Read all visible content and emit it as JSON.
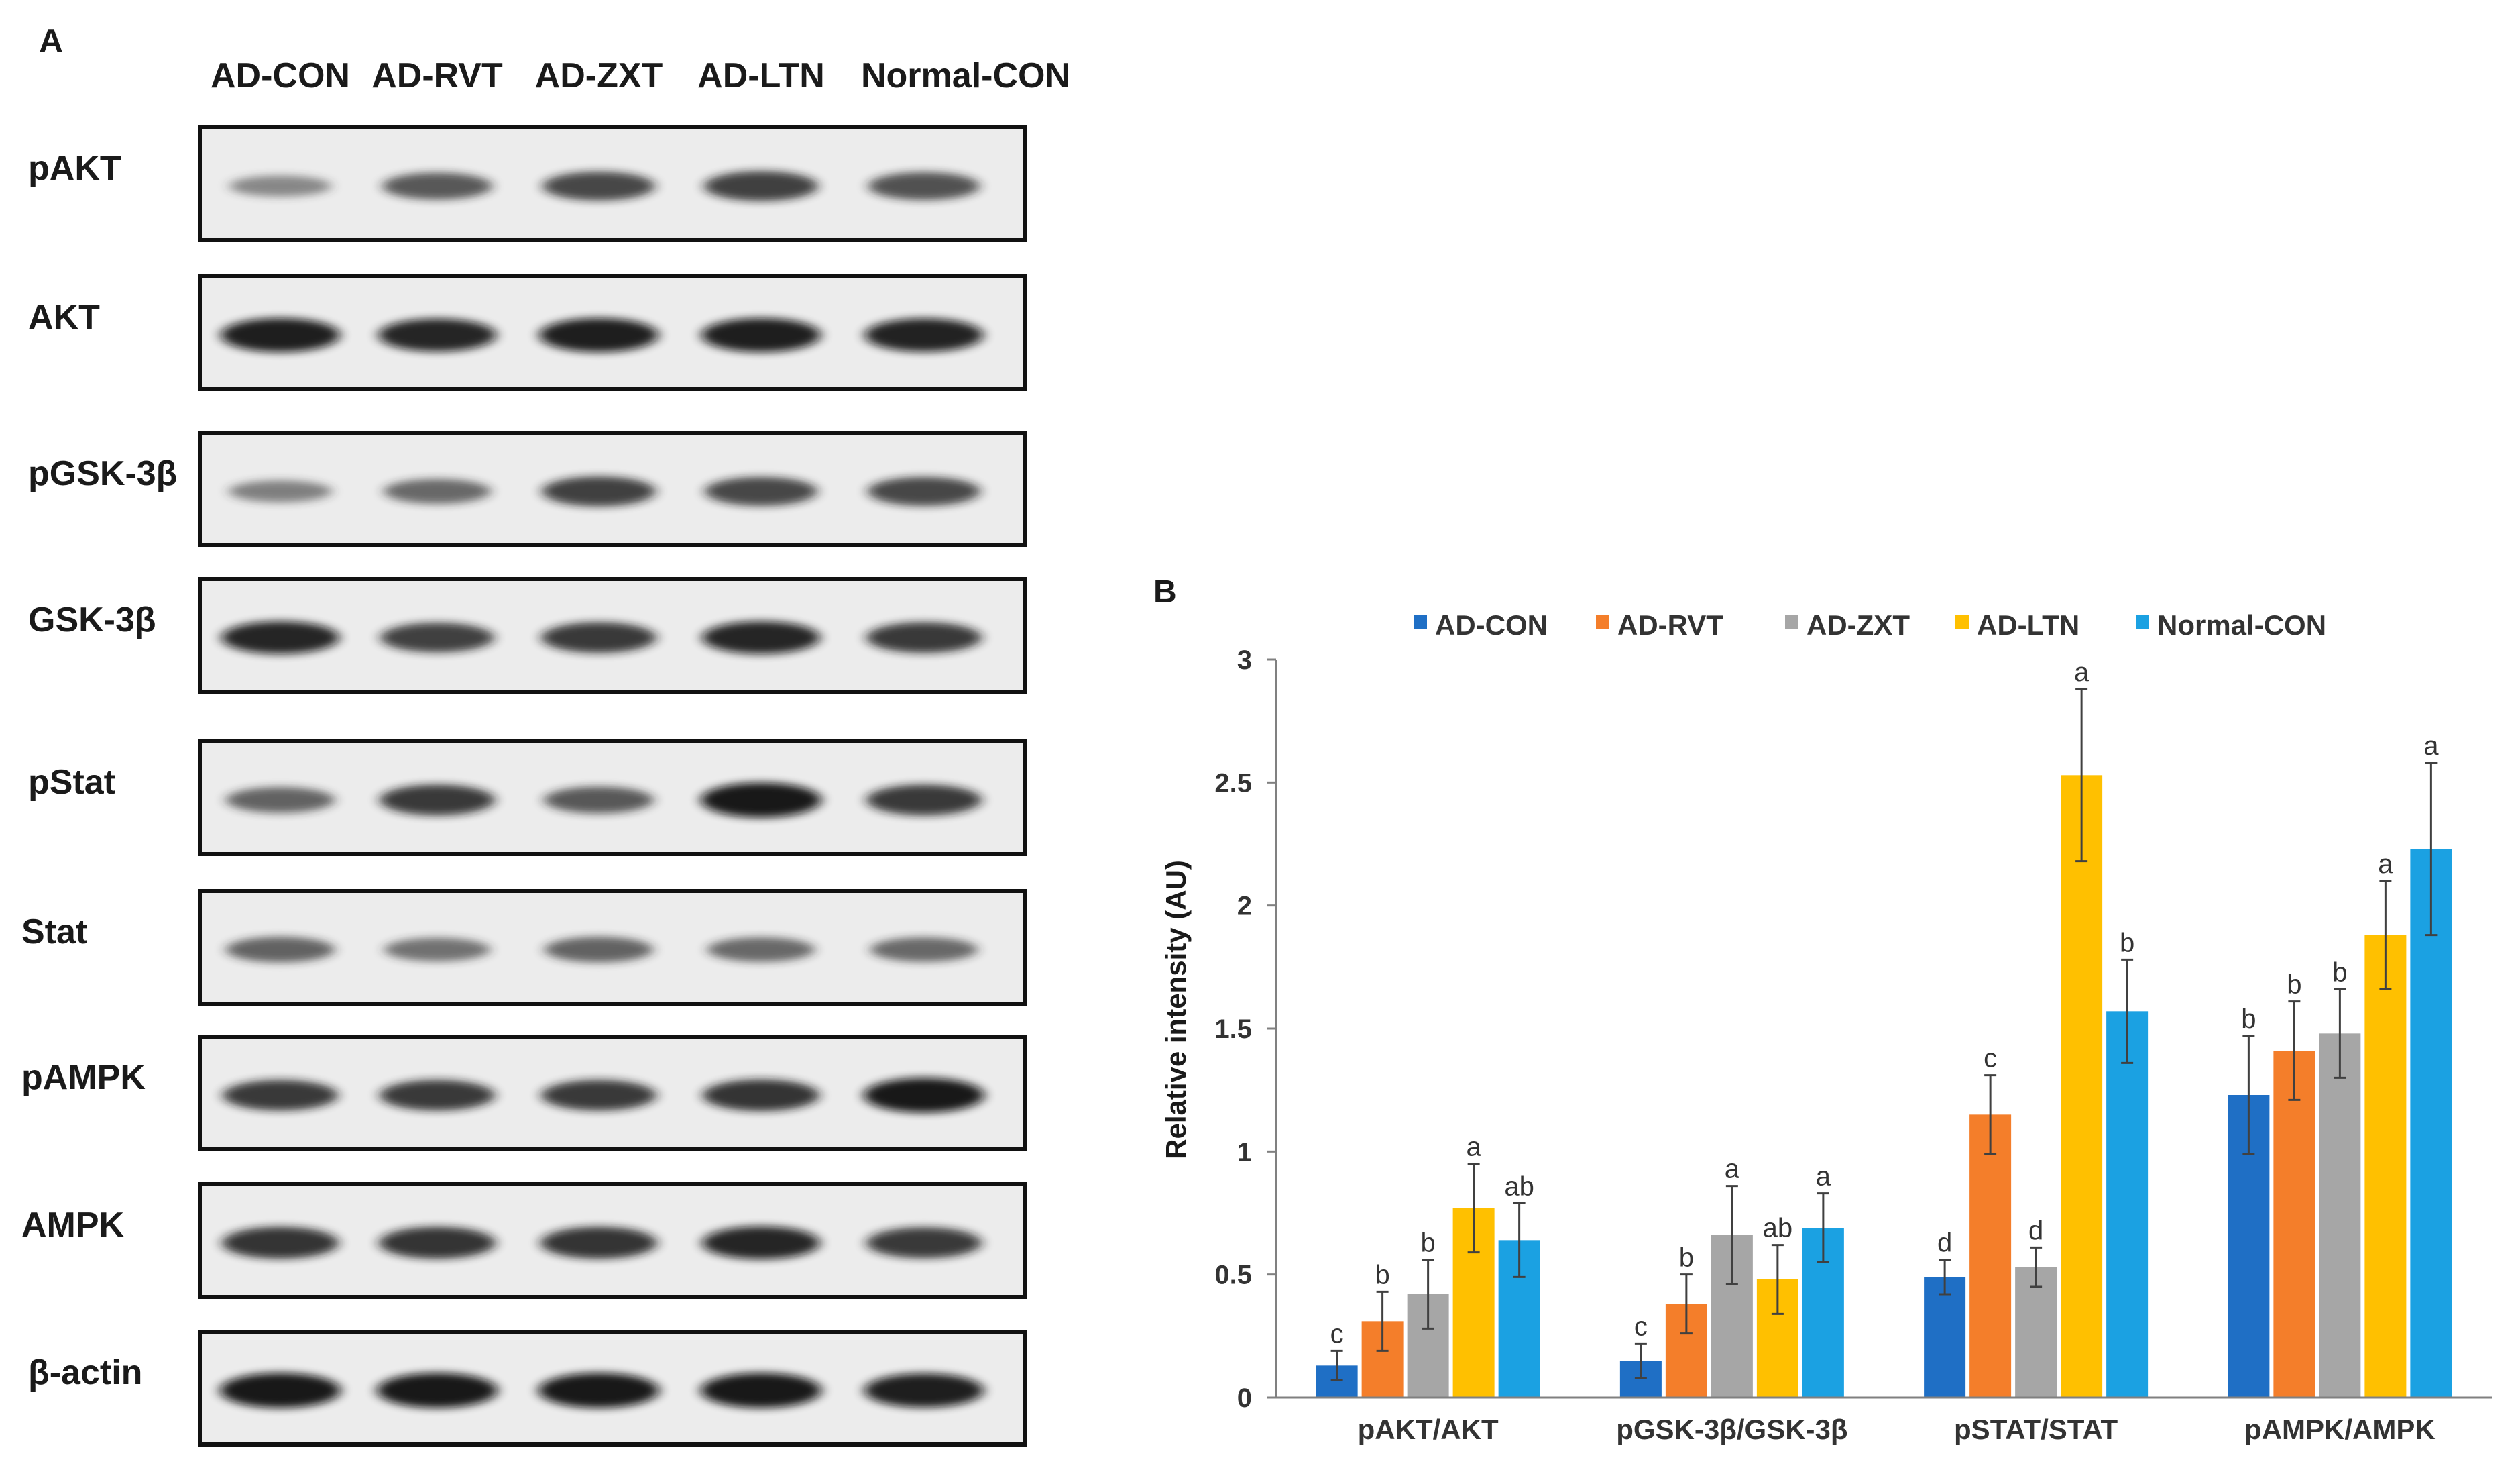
{
  "panel_a": {
    "label": "A",
    "lanes": [
      "AD-CON",
      "AD-RVT",
      "AD-ZXT",
      "AD-LTN",
      "Normal-CON"
    ],
    "blots": [
      {
        "name": "pAKT",
        "band_intensity": [
          0.3,
          0.6,
          0.7,
          0.75,
          0.65
        ]
      },
      {
        "name": "AKT",
        "band_intensity": [
          0.95,
          0.9,
          0.95,
          0.95,
          0.92
        ]
      },
      {
        "name": "pGSK-3β",
        "band_intensity": [
          0.35,
          0.5,
          0.75,
          0.7,
          0.7
        ]
      },
      {
        "name": "GSK-3β",
        "band_intensity": [
          0.9,
          0.75,
          0.8,
          0.9,
          0.8
        ]
      },
      {
        "name": "pStat",
        "band_intensity": [
          0.55,
          0.8,
          0.6,
          1.0,
          0.8
        ]
      },
      {
        "name": "Stat",
        "band_intensity": [
          0.55,
          0.45,
          0.55,
          0.5,
          0.5
        ]
      },
      {
        "name": "pAMPK",
        "band_intensity": [
          0.8,
          0.8,
          0.8,
          0.85,
          1.0
        ]
      },
      {
        "name": "AMPK",
        "band_intensity": [
          0.85,
          0.85,
          0.85,
          0.9,
          0.8
        ]
      },
      {
        "name": "β-actin",
        "band_intensity": [
          1.0,
          1.0,
          1.0,
          1.0,
          0.95
        ]
      }
    ]
  },
  "panel_b": {
    "label": "B"
  },
  "chart_data": {
    "type": "bar",
    "title": "",
    "xlabel": "",
    "ylabel": "Relative intensity (AU)",
    "ylim": [
      0,
      3
    ],
    "yticks": [
      0,
      0.5,
      1,
      1.5,
      2,
      2.5,
      3
    ],
    "ytick_labels": [
      "0",
      "0.5",
      "1",
      "1.5",
      "2",
      "2.5",
      "3"
    ],
    "grid": false,
    "legend_position": "top",
    "categories": [
      "pAKT/AKT",
      "pGSK-3β/GSK-3β",
      "pSTAT/STAT",
      "pAMPK/AMPK"
    ],
    "series": [
      {
        "name": "AD-CON",
        "color": "#1f6fc5",
        "values": [
          0.13,
          0.15,
          0.49,
          1.23
        ],
        "errors": [
          0.06,
          0.07,
          0.07,
          0.24
        ],
        "letters": [
          "c",
          "c",
          "d",
          "b"
        ]
      },
      {
        "name": "AD-RVT",
        "color": "#f47e2a",
        "values": [
          0.31,
          0.38,
          1.15,
          1.41
        ],
        "errors": [
          0.12,
          0.12,
          0.16,
          0.2
        ],
        "letters": [
          "b",
          "b",
          "c",
          "b"
        ]
      },
      {
        "name": "AD-ZXT",
        "color": "#a6a6a6",
        "values": [
          0.42,
          0.66,
          0.53,
          1.48
        ],
        "errors": [
          0.14,
          0.2,
          0.08,
          0.18
        ],
        "letters": [
          "b",
          "a",
          "d",
          "b"
        ]
      },
      {
        "name": "AD-LTN",
        "color": "#ffc000",
        "values": [
          0.77,
          0.48,
          2.53,
          1.88
        ],
        "errors": [
          0.18,
          0.14,
          0.35,
          0.22
        ],
        "letters": [
          "a",
          "ab",
          "a",
          "a"
        ]
      },
      {
        "name": "Normal-CON",
        "color": "#1ba1e2",
        "values": [
          0.64,
          0.69,
          1.57,
          2.23
        ],
        "errors": [
          0.15,
          0.14,
          0.21,
          0.35
        ],
        "letters": [
          "ab",
          "a",
          "b",
          "a"
        ]
      }
    ]
  }
}
